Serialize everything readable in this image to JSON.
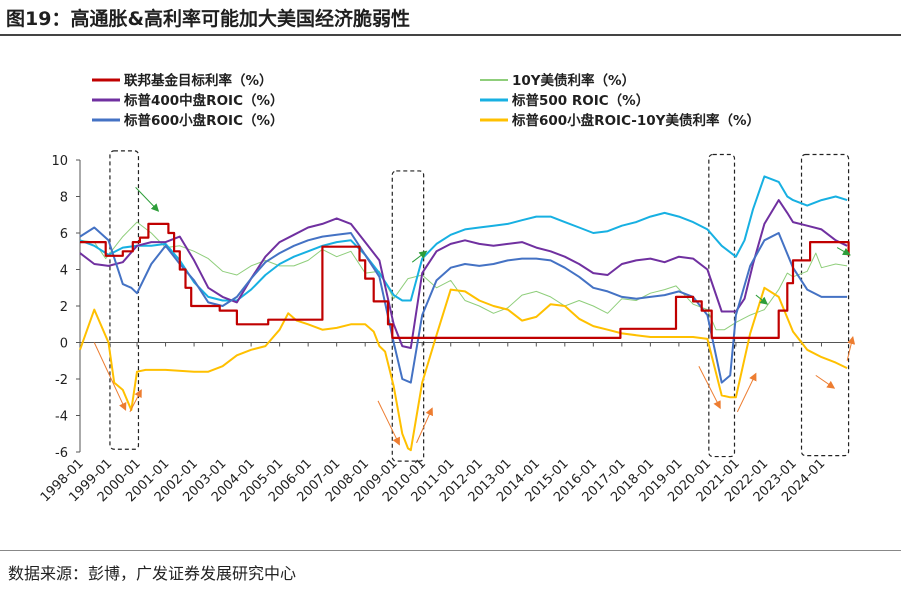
{
  "figure_title": "图19：高通胀&高利率可能加大美国经济脆弱性",
  "source_note": "数据来源：彭博，广发证券发展研究中心",
  "chart_data": {
    "type": "line",
    "title": "图19：高通胀&高利率可能加大美国经济脆弱性",
    "xlabel": "",
    "ylabel": "",
    "ylim": [
      -6,
      10
    ],
    "yticks": [
      -6,
      -4,
      -2,
      0,
      2,
      4,
      6,
      8,
      10
    ],
    "xticks": [
      "1998-01",
      "1999-01",
      "2000-01",
      "2001-01",
      "2002-01",
      "2003-01",
      "2004-01",
      "2005-01",
      "2006-01",
      "2007-01",
      "2008-01",
      "2009-01",
      "2010-01",
      "2011-01",
      "2012-01",
      "2013-01",
      "2014-01",
      "2015-01",
      "2016-01",
      "2017-01",
      "2018-01",
      "2019-01",
      "2020-01",
      "2021-01",
      "2022-01",
      "2023-01",
      "2024-01"
    ],
    "xrange": [
      1998.0,
      2025.0
    ],
    "grid": false,
    "legend_position": "top",
    "series": [
      {
        "name": "联邦基金目标利率（%）",
        "color": "#c00000",
        "width": 2.2,
        "step": true,
        "x": [
          1998.0,
          1998.7,
          1998.9,
          1999.5,
          1999.85,
          2000.1,
          2000.4,
          2001.0,
          2001.1,
          2001.3,
          2001.5,
          2001.7,
          2001.9,
          2002.9,
          2003.5,
          2004.5,
          2004.6,
          2006.5,
          2007.6,
          2007.8,
          2008.0,
          2008.3,
          2008.8,
          2008.95,
          2015.95,
          2016.95,
          2018.9,
          2019.5,
          2019.8,
          2020.15,
          2022.2,
          2022.5,
          2022.8,
          2023.0,
          2023.6,
          2024.7,
          2024.95
        ],
        "values": [
          5.5,
          5.5,
          4.75,
          5.0,
          5.5,
          5.75,
          6.5,
          6.5,
          6.0,
          5.0,
          4.0,
          3.0,
          2.0,
          1.75,
          1.0,
          1.0,
          1.25,
          5.25,
          5.25,
          4.5,
          3.5,
          2.25,
          1.0,
          0.25,
          0.25,
          0.75,
          2.5,
          2.25,
          1.75,
          0.25,
          0.25,
          1.75,
          3.25,
          4.5,
          5.5,
          5.5,
          4.75
        ]
      },
      {
        "name": "10Y美债利率（%）",
        "color": "#8fce7b",
        "width": 1.0,
        "x": [
          1998.0,
          1998.5,
          1998.9,
          1999.5,
          2000.0,
          2000.5,
          2001.0,
          2001.5,
          2002.0,
          2002.5,
          2003.0,
          2003.5,
          2004.0,
          2004.5,
          2005.0,
          2005.5,
          2006.0,
          2006.5,
          2007.0,
          2007.5,
          2008.0,
          2008.5,
          2009.0,
          2009.5,
          2010.0,
          2010.5,
          2011.0,
          2011.5,
          2012.0,
          2012.5,
          2013.0,
          2013.5,
          2014.0,
          2014.5,
          2015.0,
          2015.5,
          2016.0,
          2016.5,
          2017.0,
          2017.5,
          2018.0,
          2018.5,
          2018.9,
          2019.5,
          2020.0,
          2020.3,
          2020.6,
          2021.0,
          2021.5,
          2022.0,
          2022.5,
          2022.8,
          2023.0,
          2023.5,
          2023.8,
          2024.0,
          2024.5,
          2024.9
        ],
        "values": [
          5.6,
          5.5,
          4.6,
          5.8,
          6.6,
          6.0,
          5.2,
          5.3,
          5.0,
          4.6,
          3.9,
          3.7,
          4.2,
          4.5,
          4.2,
          4.2,
          4.5,
          5.1,
          4.7,
          5.0,
          3.8,
          3.9,
          2.4,
          3.5,
          3.7,
          3.0,
          3.4,
          2.3,
          2.0,
          1.6,
          1.9,
          2.6,
          2.8,
          2.5,
          2.0,
          2.3,
          2.0,
          1.6,
          2.4,
          2.3,
          2.7,
          2.9,
          3.1,
          2.1,
          1.8,
          0.7,
          0.7,
          1.1,
          1.5,
          1.8,
          2.9,
          3.8,
          3.6,
          3.9,
          4.9,
          4.1,
          4.3,
          4.2
        ]
      },
      {
        "name": "标普400中盘ROIC（%）",
        "color": "#7030a0",
        "width": 2.0,
        "x": [
          1998.0,
          1998.5,
          1999.0,
          1999.5,
          2000.0,
          2000.5,
          2001.0,
          2001.5,
          2002.0,
          2002.5,
          2003.0,
          2003.5,
          2004.0,
          2004.5,
          2005.0,
          2005.5,
          2006.0,
          2006.5,
          2007.0,
          2007.5,
          2008.0,
          2008.5,
          2009.0,
          2009.3,
          2009.6,
          2010.0,
          2010.5,
          2011.0,
          2011.5,
          2012.0,
          2012.5,
          2013.0,
          2013.5,
          2014.0,
          2014.5,
          2015.0,
          2015.5,
          2016.0,
          2016.5,
          2017.0,
          2017.5,
          2018.0,
          2018.5,
          2019.0,
          2019.5,
          2020.0,
          2020.5,
          2021.0,
          2021.3,
          2021.6,
          2022.0,
          2022.5,
          2022.8,
          2023.0,
          2023.5,
          2024.0,
          2024.5,
          2024.9
        ],
        "values": [
          4.9,
          4.3,
          4.2,
          4.4,
          5.3,
          5.5,
          5.5,
          5.8,
          4.5,
          3.0,
          2.5,
          2.2,
          3.5,
          4.7,
          5.5,
          5.9,
          6.3,
          6.5,
          6.8,
          6.5,
          5.5,
          4.5,
          1.0,
          -0.2,
          -0.3,
          3.8,
          5.0,
          5.4,
          5.6,
          5.4,
          5.3,
          5.4,
          5.5,
          5.2,
          5.0,
          4.7,
          4.3,
          3.8,
          3.7,
          4.3,
          4.5,
          4.6,
          4.4,
          4.7,
          4.6,
          4.0,
          1.7,
          1.7,
          2.4,
          4.3,
          6.5,
          7.8,
          7.1,
          6.6,
          6.4,
          6.2,
          5.6,
          5.3
        ]
      },
      {
        "name": "标普500 ROIC（%）",
        "color": "#17b0e2",
        "width": 2.0,
        "x": [
          1998.0,
          1998.5,
          1999.0,
          1999.5,
          2000.0,
          2000.5,
          2001.0,
          2001.5,
          2002.0,
          2002.5,
          2003.0,
          2003.5,
          2004.0,
          2004.5,
          2005.0,
          2005.5,
          2006.0,
          2006.5,
          2007.0,
          2007.5,
          2008.0,
          2008.5,
          2009.0,
          2009.3,
          2009.6,
          2010.0,
          2010.5,
          2011.0,
          2011.5,
          2012.0,
          2012.5,
          2013.0,
          2013.5,
          2014.0,
          2014.5,
          2015.0,
          2015.5,
          2016.0,
          2016.5,
          2017.0,
          2017.5,
          2018.0,
          2018.5,
          2019.0,
          2019.5,
          2020.0,
          2020.5,
          2021.0,
          2021.3,
          2021.6,
          2022.0,
          2022.5,
          2022.8,
          2023.0,
          2023.5,
          2024.0,
          2024.5,
          2024.9
        ],
        "values": [
          5.6,
          5.3,
          4.8,
          5.2,
          5.3,
          5.3,
          5.4,
          4.5,
          3.3,
          2.5,
          2.3,
          2.3,
          2.9,
          3.7,
          4.3,
          4.7,
          5.0,
          5.3,
          5.5,
          5.6,
          4.8,
          3.8,
          2.6,
          2.3,
          2.3,
          4.6,
          5.4,
          5.9,
          6.2,
          6.3,
          6.4,
          6.5,
          6.7,
          6.9,
          6.9,
          6.6,
          6.3,
          6.0,
          6.1,
          6.4,
          6.6,
          6.9,
          7.1,
          6.9,
          6.6,
          6.2,
          5.3,
          4.7,
          5.6,
          7.3,
          9.1,
          8.8,
          8.0,
          7.8,
          7.5,
          7.8,
          8.0,
          7.8
        ]
      },
      {
        "name": "标普600小盘ROIC（%）",
        "color": "#4472c4",
        "width": 2.0,
        "x": [
          1998.0,
          1998.5,
          1999.0,
          1999.5,
          1999.8,
          2000.0,
          2000.5,
          2001.0,
          2001.5,
          2002.0,
          2002.5,
          2003.0,
          2003.5,
          2004.0,
          2004.5,
          2005.0,
          2005.5,
          2006.0,
          2006.5,
          2007.0,
          2007.5,
          2008.0,
          2008.5,
          2009.0,
          2009.3,
          2009.6,
          2010.0,
          2010.5,
          2011.0,
          2011.5,
          2012.0,
          2012.5,
          2013.0,
          2013.5,
          2014.0,
          2014.5,
          2015.0,
          2015.5,
          2016.0,
          2016.5,
          2017.0,
          2017.5,
          2018.0,
          2018.5,
          2019.0,
          2019.5,
          2020.0,
          2020.5,
          2020.8,
          2021.0,
          2021.5,
          2022.0,
          2022.5,
          2023.0,
          2023.5,
          2024.0,
          2024.5,
          2024.9
        ],
        "values": [
          5.8,
          6.3,
          5.6,
          3.2,
          3.0,
          2.7,
          4.3,
          5.3,
          4.3,
          3.4,
          2.2,
          2.0,
          2.5,
          3.5,
          4.4,
          4.9,
          5.3,
          5.6,
          5.8,
          5.9,
          6.0,
          4.8,
          3.6,
          0.0,
          -2.0,
          -2.2,
          1.5,
          3.4,
          4.1,
          4.3,
          4.2,
          4.3,
          4.5,
          4.6,
          4.6,
          4.5,
          4.1,
          3.6,
          3.0,
          2.8,
          2.5,
          2.4,
          2.5,
          2.6,
          2.8,
          2.5,
          1.5,
          -2.2,
          -1.8,
          1.5,
          4.2,
          5.6,
          6.0,
          4.1,
          2.9,
          2.5,
          2.5,
          2.5
        ]
      },
      {
        "name": "标普600小盘ROIC-10Y美债利率（%）",
        "color": "#ffc000",
        "width": 2.0,
        "x": [
          1998.0,
          1998.5,
          1999.0,
          1999.2,
          1999.5,
          1999.8,
          2000.0,
          2000.3,
          2001.0,
          2002.0,
          2002.5,
          2003.0,
          2003.5,
          2004.0,
          2004.5,
          2005.0,
          2005.3,
          2005.6,
          2006.0,
          2006.5,
          2007.0,
          2007.5,
          2008.0,
          2008.3,
          2008.5,
          2008.7,
          2009.0,
          2009.3,
          2009.5,
          2009.6,
          2010.0,
          2010.5,
          2011.0,
          2011.5,
          2012.0,
          2012.5,
          2013.0,
          2013.5,
          2014.0,
          2014.5,
          2015.0,
          2015.5,
          2016.0,
          2016.5,
          2017.0,
          2017.5,
          2018.0,
          2018.5,
          2019.0,
          2019.5,
          2020.0,
          2020.5,
          2020.8,
          2021.0,
          2021.5,
          2022.0,
          2022.5,
          2023.0,
          2023.5,
          2024.0,
          2024.5,
          2024.9
        ],
        "values": [
          -0.4,
          1.8,
          0.0,
          -2.2,
          -2.6,
          -3.7,
          -1.6,
          -1.5,
          -1.5,
          -1.6,
          -1.6,
          -1.3,
          -0.7,
          -0.4,
          -0.2,
          0.7,
          1.6,
          1.2,
          1.0,
          0.7,
          0.8,
          1.0,
          1.0,
          0.6,
          -0.2,
          -0.5,
          -2.4,
          -5.0,
          -5.8,
          -5.9,
          -2.2,
          0.4,
          2.9,
          2.8,
          2.3,
          2.0,
          1.8,
          1.2,
          1.4,
          2.1,
          2.0,
          1.3,
          0.9,
          0.7,
          0.5,
          0.4,
          0.3,
          0.3,
          0.3,
          0.3,
          0.2,
          -2.9,
          -3.0,
          -3.0,
          0.5,
          3.0,
          2.5,
          0.6,
          -0.4,
          -0.8,
          -1.1,
          -1.4
        ]
      }
    ]
  }
}
